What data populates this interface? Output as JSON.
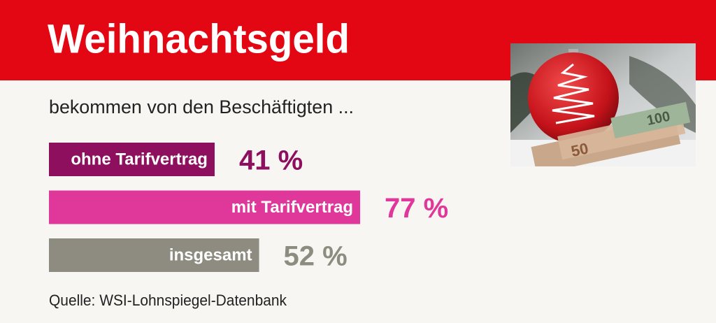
{
  "chart_data": {
    "type": "bar",
    "title": "Weihnachtsgeld",
    "subtitle": "bekommen von den Beschäftigten ...",
    "categories": [
      "ohne Tarifvertrag",
      "mit Tarifvertrag",
      "insgesamt"
    ],
    "values": [
      41,
      77,
      52
    ],
    "value_labels": [
      "41 %",
      "77 %",
      "52 %"
    ],
    "colors": [
      "#8e0f5e",
      "#e0389a",
      "#8e8c80"
    ],
    "source": "Quelle: WSI-Lohnspiegel-Datenbank"
  }
}
